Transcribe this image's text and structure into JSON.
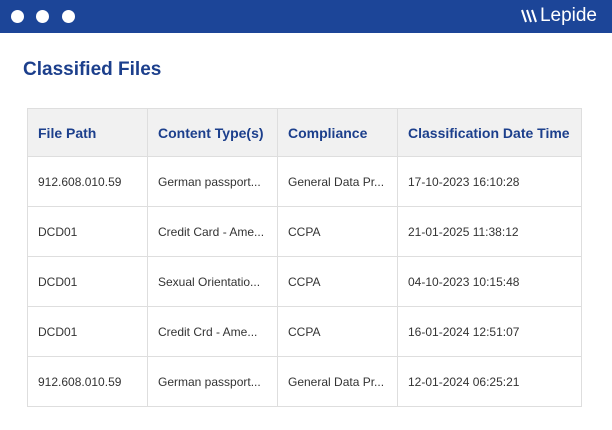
{
  "window": {
    "brand": "Lepide",
    "accent": "#1c4598"
  },
  "page": {
    "title": "Classified Files"
  },
  "table": {
    "headers": [
      "File Path",
      "Content Type(s)",
      "Compliance",
      "Classification Date Time"
    ],
    "rows": [
      [
        "912.608.010.59",
        "German passport...",
        "General Data Pr...",
        "17-10-2023 16:10:28"
      ],
      [
        "DCD01",
        "Credit Card - Ame...",
        "CCPA",
        "21-01-2025 11:38:12"
      ],
      [
        "DCD01",
        "Sexual Orientatio...",
        "CCPA",
        "04-10-2023 10:15:48"
      ],
      [
        "DCD01",
        "Credit Crd - Ame...",
        "CCPA",
        "16-01-2024 12:51:07"
      ],
      [
        "912.608.010.59",
        "German passport...",
        "General Data Pr...",
        "12-01-2024 06:25:21"
      ]
    ]
  }
}
